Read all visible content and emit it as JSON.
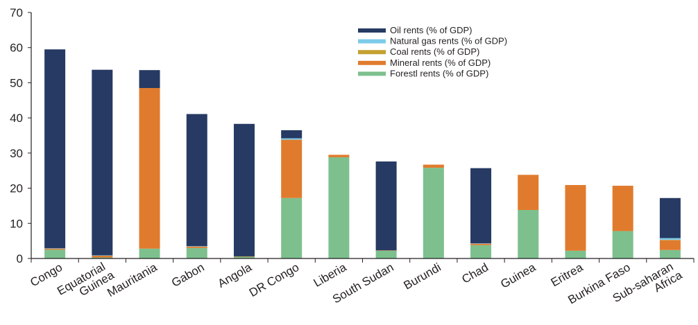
{
  "chart_data": {
    "type": "bar",
    "stacked": true,
    "title": "",
    "xlabel": "",
    "ylabel": "",
    "ylim": [
      0,
      70
    ],
    "yticks": [
      0,
      10,
      20,
      30,
      40,
      50,
      60,
      70
    ],
    "grid": false,
    "legend_position": "top-right",
    "categories": [
      [
        "Congo"
      ],
      [
        "Equatorial",
        "Guinea"
      ],
      [
        "Mauritania"
      ],
      [
        "Gabon"
      ],
      [
        "Angola"
      ],
      [
        "DR Congo"
      ],
      [
        "Liberia"
      ],
      [
        "South Sudan"
      ],
      [
        "Burundi"
      ],
      [
        "Chad"
      ],
      [
        "Guinea"
      ],
      [
        "Eritrea"
      ],
      [
        "Burkina Faso"
      ],
      [
        "Sub-saharan",
        "Africa"
      ]
    ],
    "series": [
      {
        "name": "Forestl rents (% of GDP)",
        "color": "#7dc08e",
        "values": [
          2.5,
          0.3,
          2.8,
          3.0,
          0.5,
          17.2,
          28.8,
          2.2,
          25.8,
          3.8,
          13.8,
          2.2,
          7.8,
          2.4
        ]
      },
      {
        "name": "Mineral rents (% of GDP)",
        "color": "#e07b2e",
        "values": [
          0.3,
          0.5,
          45.7,
          0.4,
          0.1,
          16.6,
          0.7,
          0.1,
          0.9,
          0.4,
          10.0,
          18.7,
          12.9,
          2.8
        ]
      },
      {
        "name": "Coal rents (% of GDP)",
        "color": "#c4a131",
        "values": [
          0.0,
          0.0,
          0.0,
          0.0,
          0.0,
          0.0,
          0.0,
          0.0,
          0.0,
          0.0,
          0.0,
          0.0,
          0.0,
          0.1
        ]
      },
      {
        "name": "Natural gas rents (% of GDP)",
        "color": "#7ecbea",
        "values": [
          0.1,
          0.1,
          0.0,
          0.1,
          0.0,
          0.4,
          0.0,
          0.0,
          0.0,
          0.1,
          0.0,
          0.0,
          0.0,
          0.5
        ]
      },
      {
        "name": "Oil rents (% of GDP)",
        "color": "#263a63",
        "values": [
          56.6,
          52.8,
          5.1,
          37.6,
          37.7,
          2.3,
          0.0,
          25.3,
          0.0,
          21.4,
          0.0,
          0.0,
          0.0,
          11.4
        ]
      }
    ],
    "legend_order": [
      "Oil rents (% of GDP)",
      "Natural gas rents (% of GDP)",
      "Coal rents (% of GDP)",
      "Mineral rents (% of GDP)",
      "Forestl rents (% of GDP)"
    ]
  }
}
